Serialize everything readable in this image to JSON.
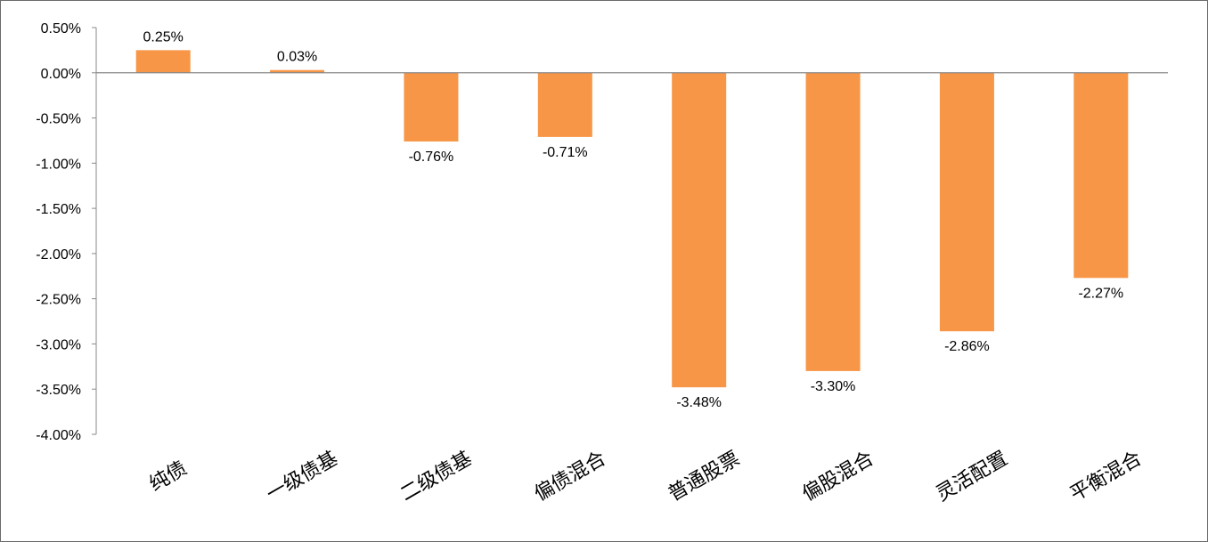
{
  "chart_data": {
    "type": "bar",
    "categories": [
      "纯债",
      "一级债基",
      "二级债基",
      "偏债混合",
      "普通股票",
      "偏股混合",
      "灵活配置",
      "平衡混合"
    ],
    "values": [
      0.25,
      0.03,
      -0.76,
      -0.71,
      -3.48,
      -3.3,
      -2.86,
      -2.27
    ],
    "data_labels": [
      "0.25%",
      "0.03%",
      "-0.76%",
      "-0.71%",
      "-3.48%",
      "-3.30%",
      "-2.86%",
      "-2.27%"
    ],
    "ylim": [
      -4.0,
      0.5
    ],
    "yticks": [
      0.5,
      0.0,
      -0.5,
      -1.0,
      -1.5,
      -2.0,
      -2.5,
      -3.0,
      -3.5,
      -4.0
    ],
    "ytick_labels": [
      "0.50%",
      "0.00%",
      "-0.50%",
      "-1.00%",
      "-1.50%",
      "-2.00%",
      "-2.50%",
      "-3.00%",
      "-3.50%",
      "-4.00%"
    ],
    "bar_color": "#F79646",
    "axis_color": "#898989",
    "grid": false,
    "legend": "none"
  }
}
